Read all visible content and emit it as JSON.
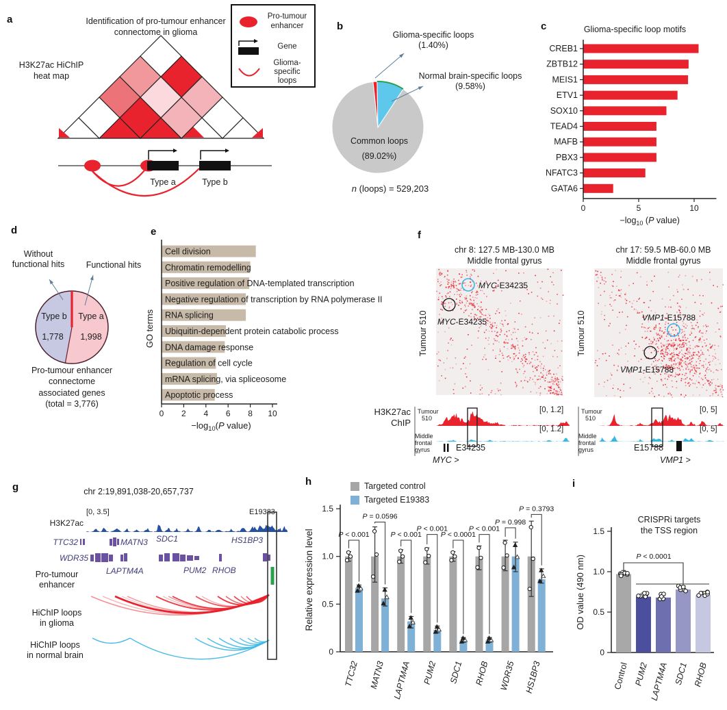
{
  "colors": {
    "red": "#e8232e",
    "cyan": "#5ec8ec",
    "navy": "#27519f",
    "purple": "#6a51a1",
    "tan": "#c8baa8",
    "green": "#2ba14b",
    "gray_bar": "#a6a6a6",
    "blue_bar": "#7fb0d6",
    "pie_gray": "#c9c9c9",
    "pink": "#f7c9ce",
    "lavender": "#c7c8e2"
  },
  "panel_a": {
    "label": "a",
    "title": "Identification of pro-tumour enhancer connectome in glioma",
    "heatmap_label": "H3K27ac HiChIP heat map",
    "legend": {
      "enhancer": "Pro-tumour enhancer",
      "gene": "Gene",
      "loops": "Glioma-specific loops"
    },
    "type_a": "Type a",
    "type_b": "Type b"
  },
  "panel_b": {
    "label": "b",
    "callout_glioma": "Glioma-specific loops",
    "callout_glioma_pct": "(1.40%)",
    "callout_normal": "Normal brain-specific loops",
    "callout_normal_pct": "(9.58%)",
    "common_label": "Common loops",
    "common_pct": "(89.02%)",
    "caption_italic": "n",
    "caption_rest": " (loops) = 529,203"
  },
  "panel_c": {
    "label": "c",
    "title": "Glioma-specific loop motifs",
    "xlabel_parts": [
      "−log",
      "10",
      " (",
      "P",
      " value)"
    ]
  },
  "panel_d": {
    "label": "d",
    "callout_without_lines": [
      "Without",
      "functional hits"
    ],
    "callout_functional": "Functional hits",
    "type_a_label": "Type a",
    "type_a_value": "1,998",
    "type_b_label": "Type b",
    "type_b_value": "1,778",
    "caption_lines": [
      "Pro-tumour enhancer",
      "connectome",
      "associated genes",
      "(total = 3,776)"
    ]
  },
  "panel_e": {
    "label": "e",
    "ylabel": "GO terms",
    "xlabel_parts": [
      "−log",
      "10",
      "(",
      "P",
      " value)"
    ]
  },
  "panel_f": {
    "label": "f",
    "left": {
      "title": "chr 8: 127.5 MB-130.0 MB",
      "subtitle": "Middle frontal gyrus",
      "yaxis": "Tumour 510",
      "pair_gene": "MYC",
      "pair_rest": "-E34235",
      "scale": "[0, 1.2]",
      "enh": "E34235",
      "gene_arrow": "MYC >"
    },
    "right": {
      "title": "chr 17: 59.5 MB-60.0 MB",
      "subtitle": "Middle frontal gyrus",
      "yaxis": "Tumour 510",
      "pair_gene": "VMP1",
      "pair_rest": "-E15788",
      "scale": "[0, 5]",
      "enh": "E15788",
      "gene_arrow": "VMP1 >"
    },
    "chip_lines": [
      "H3K27ac",
      "ChIP"
    ],
    "tumour_lines": [
      "Tumour",
      "510"
    ],
    "normal_lines": [
      "Middle",
      "frontal",
      "gyrus"
    ]
  },
  "panel_g": {
    "label": "g",
    "title": "chr 2:19,891,038-20,657,737",
    "scale": "[0, 3.5]",
    "enh": "E19383",
    "track": "H3K27ac",
    "genes_row1": [
      "TTC32",
      "MATN3",
      "SDC1",
      "HS1BP3"
    ],
    "genes_row2": [
      "WDR35",
      "LAPTM4A",
      "PUM2",
      "RHOB"
    ],
    "pro_tumour_lines": [
      "Pro-tumour",
      "enhancer"
    ],
    "loops_glioma_lines": [
      "HiChIP loops",
      "in glioma"
    ],
    "loops_normal_lines": [
      "HiChIP loops",
      "in normal brain"
    ]
  },
  "panel_h": {
    "label": "h",
    "legend": [
      "Targeted control",
      "Targeted E19383"
    ],
    "ylabel": "Relative expression level"
  },
  "panel_i": {
    "label": "i",
    "title_lines": [
      "CRISPRi targets",
      "the TSS region"
    ],
    "ylabel": "OD value (490 nm)"
  },
  "chart_data": [
    {
      "id": "b",
      "type": "pie",
      "slices": [
        {
          "label": "Glioma-specific loops",
          "pct": 1.4,
          "color": "#e8232e"
        },
        {
          "label": "Normal brain-specific loops",
          "pct": 9.58,
          "color": "#5ec8ec"
        },
        {
          "label": "Common loops",
          "pct": 89.02,
          "color": "#c9c9c9"
        }
      ],
      "n_loops": 529203
    },
    {
      "id": "c",
      "type": "bar",
      "title": "Glioma-specific loop motifs",
      "categories": [
        "CREB1",
        "ZBTB12",
        "MEIS1",
        "ETV1",
        "SOX10",
        "TEAD4",
        "MAFB",
        "PBX3",
        "NFATC3",
        "GATA6"
      ],
      "values": [
        10.4,
        9.5,
        9.45,
        8.5,
        7.5,
        6.6,
        6.6,
        6.6,
        5.6,
        2.7
      ],
      "xlabel": "−log10 (P value)",
      "xticks": [
        0,
        5,
        10
      ],
      "xlim": [
        0,
        12
      ],
      "bar_color": "#e8232e"
    },
    {
      "id": "d",
      "type": "pie",
      "slices": [
        {
          "label": "Type a",
          "value": 1998,
          "color": "#f7c9ce",
          "annotation": "Functional hits"
        },
        {
          "label": "Type b",
          "value": 1778,
          "color": "#c7c8e2",
          "annotation": "Without functional hits"
        }
      ],
      "total": 3776
    },
    {
      "id": "e",
      "type": "bar",
      "categories": [
        "Cell division",
        "Chromatin remodelling",
        "Positive regulation of DNA-templated transcription",
        "Negative regulation of transcription by RNA polymerase II",
        "RNA splicing",
        "Ubiquitin-dependent protein catabolic process",
        "DNA damage response",
        "Regulation of cell cycle",
        "mRNA splicing, via spliceosome",
        "Apoptotic process"
      ],
      "values": [
        8.5,
        8.0,
        7.9,
        7.6,
        7.6,
        5.8,
        5.7,
        4.9,
        5.0,
        4.8
      ],
      "xlabel": "−log10(P value)",
      "ylabel": "GO terms",
      "xticks": [
        0,
        2,
        4,
        6,
        8,
        10
      ],
      "xlim": [
        0,
        11
      ],
      "bar_color": "#c8baa8"
    },
    {
      "id": "h",
      "type": "grouped_bar",
      "categories": [
        "TTC32",
        "MATN3",
        "LAPTM4A",
        "PUM2",
        "SDC1",
        "RHOB",
        "WDR35",
        "HS1BP3"
      ],
      "series": [
        {
          "name": "Targeted control",
          "color": "#a6a6a6",
          "values": [
            1,
            1,
            1,
            1,
            1,
            1,
            1,
            1
          ]
        },
        {
          "name": "Targeted E19383",
          "color": "#7fb0d6",
          "values": [
            0.67,
            0.56,
            0.32,
            0.23,
            0.12,
            0.12,
            1.0,
            0.76
          ]
        }
      ],
      "ylabel": "Relative expression level",
      "ylim": [
        0,
        1.5
      ],
      "yticks": [
        0,
        0.5,
        1.0,
        1.5
      ],
      "p_labels": [
        "P < 0.001",
        "P = 0.0596",
        "P < 0.001",
        "P < 0.001",
        "P < 0.0001",
        "P < 0.001",
        "P = 0.998",
        "P = 0.3793"
      ],
      "ctrl_err": [
        [
          0.95,
          1.05
        ],
        [
          0.73,
          1.31
        ],
        [
          0.93,
          1.07
        ],
        [
          0.92,
          1.09
        ],
        [
          0.95,
          1.05
        ],
        [
          0.86,
          1.11
        ],
        [
          0.85,
          1.17
        ],
        [
          0.58,
          1.37
        ]
      ],
      "e_err": [
        [
          0.63,
          0.7
        ],
        [
          0.48,
          0.67
        ],
        [
          0.25,
          0.37
        ],
        [
          0.2,
          0.27
        ],
        [
          0.1,
          0.15
        ],
        [
          0.1,
          0.15
        ],
        [
          0.84,
          1.15
        ],
        [
          0.72,
          0.87
        ]
      ],
      "bracket_y": [
        1.17,
        1.36,
        1.17,
        1.23,
        1.17,
        1.23,
        1.3,
        1.44
      ]
    },
    {
      "id": "i",
      "type": "bar",
      "title": "CRISPRi targets the TSS region",
      "categories": [
        "Control",
        "PUM2",
        "LAPTM4A",
        "SDC1",
        "RHOB"
      ],
      "values": [
        0.97,
        0.69,
        0.68,
        0.78,
        0.71
      ],
      "colors": [
        "#a8a8a8",
        "#4b4f9e",
        "#6e6fae",
        "#9697c5",
        "#c6c7e1"
      ],
      "italic_flags": [
        false,
        true,
        true,
        true,
        true
      ],
      "ylabel": "OD value (490 nm)",
      "ylim": [
        0,
        1.5
      ],
      "yticks": [
        0,
        0.5,
        1.0,
        1.5
      ],
      "p_label": "P < 0.0001"
    }
  ]
}
